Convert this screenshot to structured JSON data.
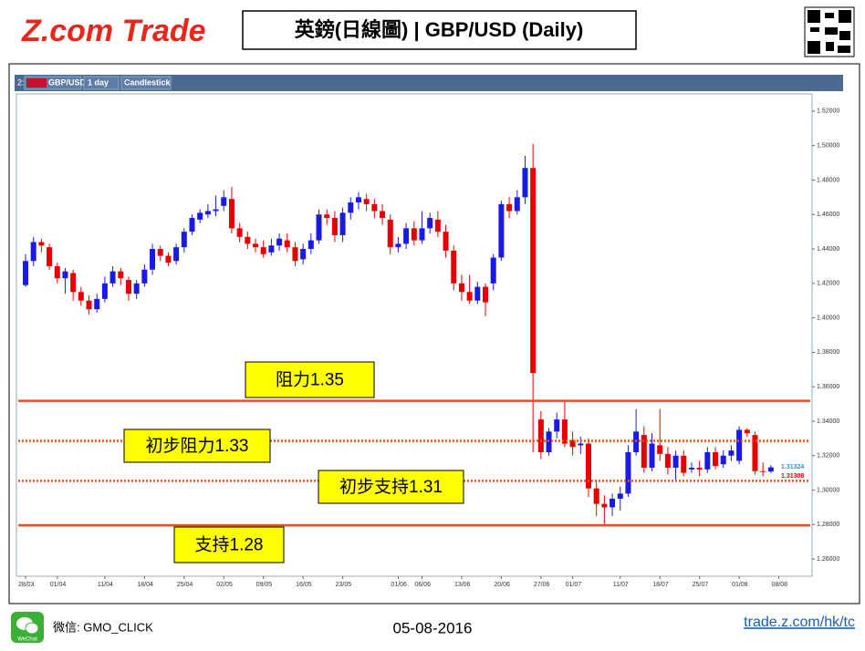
{
  "header": {
    "logo": "Z.com Trade",
    "title": "英鎊(日線圖) | GBP/USD (Daily)"
  },
  "toolbar": {
    "index": "2:",
    "symbol": "GBP/USD",
    "period": "1 day",
    "style": "Candlestick"
  },
  "chart_data": {
    "type": "candlestick",
    "up_color": "#1a1ae6",
    "down_color": "#e60000",
    "categories": [
      "28/03",
      null,
      null,
      null,
      "01/04",
      null,
      null,
      null,
      null,
      null,
      "11/04",
      null,
      null,
      null,
      null,
      "18/04",
      null,
      null,
      null,
      null,
      "25/04",
      null,
      null,
      null,
      null,
      "02/05",
      null,
      null,
      null,
      null,
      "09/05",
      null,
      null,
      null,
      null,
      "16/05",
      null,
      null,
      null,
      null,
      "23/05",
      null,
      null,
      null,
      null,
      null,
      null,
      "01/06",
      null,
      null,
      "06/06",
      null,
      null,
      null,
      null,
      "13/06",
      null,
      null,
      null,
      null,
      "20/06",
      null,
      null,
      null,
      null,
      "27/06",
      null,
      null,
      null,
      "01/07",
      null,
      null,
      null,
      null,
      null,
      "11/07",
      null,
      null,
      null,
      null,
      "18/07",
      null,
      null,
      null,
      null,
      "25/07",
      null,
      null,
      null,
      null,
      "01/08",
      null,
      null,
      null,
      null,
      "08/08"
    ],
    "open": [
      1.419,
      1.433,
      1.444,
      1.441,
      1.43,
      1.423,
      1.426,
      1.415,
      1.41,
      1.405,
      1.411,
      1.42,
      1.427,
      1.422,
      1.414,
      1.42,
      1.428,
      1.44,
      1.436,
      1.433,
      1.441,
      1.45,
      1.457,
      1.46,
      1.462,
      1.465,
      1.469,
      1.452,
      1.447,
      1.443,
      1.441,
      1.438,
      1.442,
      1.445,
      1.441,
      1.434,
      1.44,
      1.445,
      1.46,
      1.458,
      1.448,
      1.461,
      1.467,
      1.469,
      1.466,
      1.462,
      1.457,
      1.441,
      1.443,
      1.452,
      1.445,
      1.452,
      1.457,
      1.45,
      1.439,
      1.42,
      1.415,
      1.41,
      1.418,
      1.42,
      1.435,
      1.466,
      1.462,
      1.47,
      1.487,
      1.341,
      1.322,
      1.334,
      1.341,
      1.329,
      1.326,
      1.327,
      1.301,
      1.292,
      1.29,
      1.295,
      1.298,
      1.322,
      1.332,
      1.313,
      1.326,
      1.321,
      1.313,
      1.32,
      1.312,
      1.313,
      1.312,
      1.322,
      1.315,
      1.32,
      1.317,
      1.335,
      1.332,
      1.311,
      1.3108,
      null
    ],
    "high": [
      1.437,
      1.447,
      1.446,
      1.443,
      1.432,
      1.429,
      1.428,
      1.418,
      1.413,
      1.414,
      1.424,
      1.43,
      1.429,
      1.424,
      1.422,
      1.431,
      1.443,
      1.442,
      1.438,
      1.443,
      1.452,
      1.46,
      1.463,
      1.466,
      1.471,
      1.474,
      1.476,
      1.455,
      1.45,
      1.446,
      1.445,
      1.446,
      1.449,
      1.449,
      1.444,
      1.443,
      1.449,
      1.463,
      1.463,
      1.462,
      1.464,
      1.47,
      1.473,
      1.472,
      1.469,
      1.466,
      1.46,
      1.447,
      1.455,
      1.456,
      1.462,
      1.461,
      1.462,
      1.454,
      1.442,
      1.425,
      1.425,
      1.421,
      1.42,
      1.437,
      1.468,
      1.47,
      1.474,
      1.494,
      1.501,
      1.346,
      1.336,
      1.345,
      1.352,
      1.334,
      1.331,
      1.33,
      1.306,
      1.297,
      1.298,
      1.302,
      1.326,
      1.347,
      1.337,
      1.333,
      1.347,
      1.325,
      1.323,
      1.323,
      1.316,
      1.317,
      1.325,
      1.325,
      1.323,
      1.326,
      1.337,
      1.336,
      1.334,
      1.316,
      1.3145,
      null
    ],
    "low": [
      1.418,
      1.43,
      1.438,
      1.428,
      1.42,
      1.414,
      1.41,
      1.407,
      1.402,
      1.403,
      1.409,
      1.418,
      1.419,
      1.41,
      1.411,
      1.418,
      1.425,
      1.433,
      1.43,
      1.431,
      1.438,
      1.448,
      1.455,
      1.458,
      1.459,
      1.462,
      1.449,
      1.444,
      1.44,
      1.438,
      1.435,
      1.436,
      1.439,
      1.438,
      1.43,
      1.431,
      1.437,
      1.443,
      1.454,
      1.444,
      1.444,
      1.457,
      1.463,
      1.462,
      1.458,
      1.454,
      1.437,
      1.438,
      1.44,
      1.442,
      1.443,
      1.449,
      1.447,
      1.435,
      1.416,
      1.41,
      1.408,
      1.408,
      1.401,
      1.416,
      1.433,
      1.458,
      1.46,
      1.466,
      1.322,
      1.318,
      1.32,
      1.33,
      1.325,
      1.32,
      1.321,
      1.296,
      1.285,
      1.279,
      1.285,
      1.288,
      1.296,
      1.32,
      1.31,
      1.311,
      1.317,
      1.309,
      1.306,
      1.308,
      1.31,
      1.308,
      1.31,
      1.312,
      1.313,
      1.317,
      1.315,
      1.331,
      1.309,
      1.308,
      1.31,
      null
    ],
    "close": [
      1.433,
      1.444,
      1.442,
      1.43,
      1.423,
      1.427,
      1.415,
      1.41,
      1.405,
      1.411,
      1.42,
      1.427,
      1.423,
      1.414,
      1.42,
      1.428,
      1.44,
      1.436,
      1.432,
      1.441,
      1.45,
      1.458,
      1.461,
      1.462,
      1.463,
      1.47,
      1.452,
      1.447,
      1.443,
      1.441,
      1.437,
      1.442,
      1.446,
      1.441,
      1.433,
      1.44,
      1.445,
      1.46,
      1.458,
      1.448,
      1.461,
      1.467,
      1.47,
      1.466,
      1.462,
      1.458,
      1.441,
      1.443,
      1.452,
      1.445,
      1.452,
      1.458,
      1.45,
      1.439,
      1.42,
      1.415,
      1.41,
      1.418,
      1.409,
      1.435,
      1.466,
      1.462,
      1.47,
      1.487,
      1.368,
      1.322,
      1.334,
      1.341,
      1.327,
      1.325,
      1.327,
      1.301,
      1.292,
      1.29,
      1.295,
      1.298,
      1.322,
      1.334,
      1.313,
      1.327,
      1.321,
      1.313,
      1.32,
      1.31,
      1.313,
      1.312,
      1.322,
      1.314,
      1.32,
      1.323,
      1.335,
      1.333,
      1.311,
      1.3108,
      1.3132,
      null
    ],
    "ylim": [
      1.25,
      1.53
    ],
    "yticks": [
      {
        "value": 1.26,
        "label": "1.26000"
      },
      {
        "value": 1.28,
        "label": "1.28000"
      },
      {
        "value": 1.3,
        "label": "1.30000"
      },
      {
        "value": 1.32,
        "label": "1.32000"
      },
      {
        "value": 1.34,
        "label": "1.34000"
      },
      {
        "value": 1.36,
        "label": "1.36000"
      },
      {
        "value": 1.38,
        "label": "1.38000"
      },
      {
        "value": 1.4,
        "label": "1.40000"
      },
      {
        "value": 1.42,
        "label": "1.42000"
      },
      {
        "value": 1.44,
        "label": "1.44000"
      },
      {
        "value": 1.46,
        "label": "1.46000"
      },
      {
        "value": 1.48,
        "label": "1.48000"
      },
      {
        "value": 1.5,
        "label": "1.50000"
      },
      {
        "value": 1.52,
        "label": "1.52000"
      }
    ],
    "last_labels": [
      {
        "value": 1.31324,
        "label": "1.31324",
        "color": "#1aa0c8"
      },
      {
        "value": 1.31308,
        "label": "1.31308",
        "color": "#e60000"
      }
    ],
    "levels": [
      {
        "label": "阻力1.35",
        "value": 1.3518,
        "style": "solid"
      },
      {
        "label": "初步阻力1.33",
        "value": 1.3286,
        "style": "dotted"
      },
      {
        "label": "初步支持1.31",
        "value": 1.3054,
        "style": "dotted"
      },
      {
        "label": "支持1.28",
        "value": 1.2796,
        "style": "solid"
      }
    ],
    "level_color": "#e84e1b",
    "label_color": "#ffff00"
  },
  "footer": {
    "wechat": "WeChat",
    "account": "微信: GMO_CLICK",
    "date": "05-08-2016",
    "link": "trade.z.com/hk/tc"
  }
}
